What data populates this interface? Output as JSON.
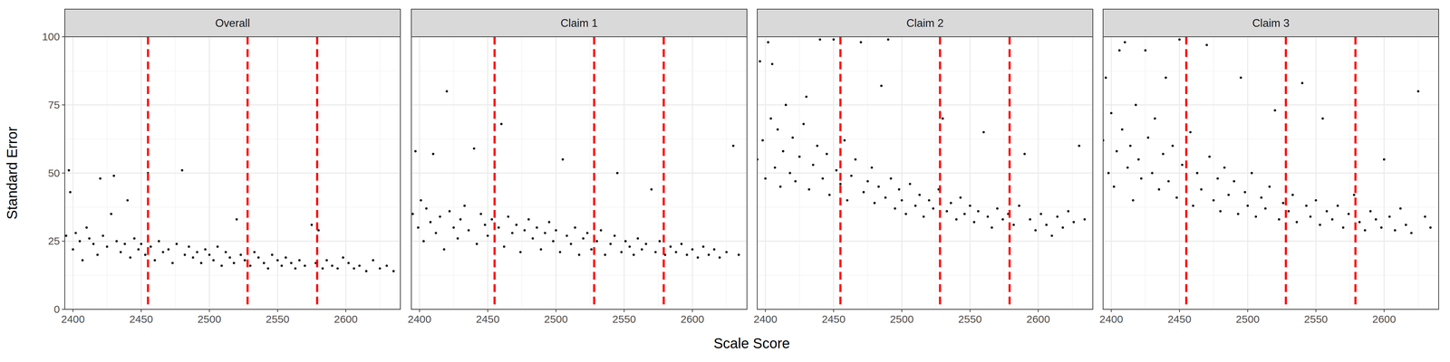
{
  "chart_data": {
    "type": "scatter",
    "xlabel": "Scale Score",
    "ylabel": "Standard Error",
    "xlim": [
      2394,
      2640
    ],
    "ylim": [
      0,
      100
    ],
    "xticks": [
      2400,
      2450,
      2500,
      2550,
      2600
    ],
    "yticks": [
      0,
      25,
      50,
      75,
      100
    ],
    "grid": true,
    "color": "#000000",
    "reference_lines": [
      2455,
      2528,
      2579
    ],
    "series": [
      {
        "name": "Overall",
        "x": [
          2395,
          2397,
          2398,
          2400,
          2402,
          2405,
          2407,
          2410,
          2412,
          2415,
          2418,
          2420,
          2422,
          2425,
          2428,
          2430,
          2432,
          2435,
          2438,
          2440,
          2442,
          2445,
          2448,
          2450,
          2453,
          2455,
          2457,
          2460,
          2463,
          2466,
          2470,
          2473,
          2476,
          2480,
          2482,
          2485,
          2488,
          2491,
          2494,
          2497,
          2500,
          2503,
          2506,
          2509,
          2512,
          2515,
          2518,
          2520,
          2523,
          2526,
          2530,
          2533,
          2536,
          2540,
          2543,
          2546,
          2550,
          2553,
          2556,
          2560,
          2563,
          2566,
          2570,
          2575,
          2578,
          2580,
          2583,
          2586,
          2590,
          2594,
          2598,
          2602,
          2606,
          2610,
          2615,
          2620,
          2625,
          2630,
          2635
        ],
        "values": [
          27,
          51,
          43,
          22,
          28,
          25,
          18,
          30,
          26,
          24,
          20,
          48,
          27,
          23,
          35,
          49,
          25,
          21,
          24,
          40,
          19,
          26,
          22,
          24,
          20,
          50,
          23,
          18,
          25,
          21,
          22,
          17,
          24,
          51,
          20,
          23,
          19,
          21,
          17,
          22,
          20,
          18,
          23,
          16,
          21,
          19,
          17,
          33,
          20,
          18,
          16,
          21,
          19,
          17,
          15,
          20,
          18,
          16,
          19,
          17,
          15,
          18,
          16,
          31,
          17,
          29,
          15,
          18,
          16,
          15,
          19,
          17,
          15,
          16,
          14,
          18,
          15,
          16,
          14
        ]
      },
      {
        "name": "Claim 1",
        "x": [
          2395,
          2397,
          2399,
          2401,
          2403,
          2405,
          2408,
          2410,
          2412,
          2415,
          2418,
          2420,
          2422,
          2425,
          2428,
          2430,
          2433,
          2436,
          2440,
          2442,
          2445,
          2448,
          2450,
          2453,
          2455,
          2458,
          2460,
          2462,
          2465,
          2468,
          2471,
          2474,
          2477,
          2480,
          2483,
          2486,
          2489,
          2492,
          2495,
          2498,
          2500,
          2503,
          2505,
          2508,
          2511,
          2514,
          2517,
          2520,
          2523,
          2526,
          2530,
          2533,
          2536,
          2540,
          2543,
          2545,
          2548,
          2551,
          2554,
          2557,
          2560,
          2563,
          2566,
          2570,
          2573,
          2576,
          2580,
          2584,
          2588,
          2592,
          2596,
          2600,
          2604,
          2608,
          2612,
          2616,
          2620,
          2625,
          2630,
          2634
        ],
        "values": [
          35,
          58,
          30,
          40,
          25,
          37,
          32,
          57,
          28,
          34,
          22,
          80,
          36,
          30,
          26,
          33,
          38,
          29,
          59,
          24,
          35,
          31,
          27,
          33,
          52,
          30,
          68,
          23,
          34,
          28,
          31,
          21,
          29,
          33,
          26,
          30,
          22,
          28,
          32,
          25,
          29,
          21,
          55,
          27,
          24,
          30,
          20,
          26,
          28,
          22,
          25,
          29,
          20,
          24,
          27,
          50,
          21,
          25,
          23,
          20,
          26,
          22,
          24,
          44,
          21,
          25,
          20,
          23,
          21,
          24,
          20,
          22,
          19,
          23,
          20,
          22,
          19,
          21,
          60,
          20
        ]
      },
      {
        "name": "Claim 2",
        "x": [
          2394,
          2396,
          2398,
          2400,
          2402,
          2404,
          2405,
          2407,
          2409,
          2411,
          2413,
          2415,
          2418,
          2420,
          2422,
          2425,
          2428,
          2430,
          2432,
          2435,
          2438,
          2440,
          2442,
          2445,
          2447,
          2450,
          2452,
          2455,
          2458,
          2460,
          2463,
          2466,
          2470,
          2472,
          2475,
          2478,
          2480,
          2483,
          2485,
          2488,
          2490,
          2492,
          2495,
          2498,
          2500,
          2503,
          2506,
          2510,
          2513,
          2516,
          2520,
          2523,
          2527,
          2530,
          2533,
          2536,
          2540,
          2543,
          2546,
          2550,
          2553,
          2556,
          2560,
          2563,
          2566,
          2570,
          2574,
          2578,
          2582,
          2586,
          2590,
          2594,
          2598,
          2602,
          2606,
          2610,
          2614,
          2618,
          2622,
          2626,
          2630,
          2634
        ],
        "values": [
          55,
          91,
          62,
          48,
          98,
          70,
          90,
          52,
          66,
          45,
          58,
          75,
          50,
          63,
          47,
          56,
          68,
          78,
          44,
          53,
          60,
          99,
          48,
          57,
          42,
          99,
          51,
          46,
          62,
          40,
          49,
          55,
          98,
          43,
          47,
          52,
          39,
          45,
          82,
          41,
          99,
          48,
          37,
          44,
          40,
          35,
          46,
          38,
          42,
          34,
          40,
          37,
          44,
          70,
          36,
          39,
          33,
          41,
          35,
          38,
          32,
          36,
          65,
          34,
          30,
          37,
          33,
          35,
          31,
          38,
          57,
          33,
          29,
          35,
          31,
          27,
          34,
          30,
          36,
          32,
          60,
          33
        ]
      },
      {
        "name": "Claim 3",
        "x": [
          2394,
          2396,
          2398,
          2400,
          2402,
          2404,
          2406,
          2408,
          2410,
          2412,
          2414,
          2416,
          2418,
          2420,
          2422,
          2425,
          2427,
          2430,
          2432,
          2435,
          2438,
          2440,
          2442,
          2445,
          2448,
          2450,
          2452,
          2455,
          2458,
          2460,
          2463,
          2466,
          2470,
          2472,
          2475,
          2478,
          2480,
          2483,
          2486,
          2490,
          2493,
          2495,
          2498,
          2500,
          2503,
          2506,
          2510,
          2513,
          2516,
          2520,
          2523,
          2526,
          2530,
          2533,
          2536,
          2540,
          2543,
          2546,
          2550,
          2553,
          2555,
          2558,
          2562,
          2566,
          2570,
          2574,
          2578,
          2582,
          2586,
          2590,
          2594,
          2598,
          2600,
          2604,
          2608,
          2612,
          2616,
          2620,
          2625,
          2630,
          2634
        ],
        "values": [
          62,
          85,
          50,
          72,
          45,
          58,
          95,
          66,
          98,
          52,
          60,
          40,
          75,
          55,
          48,
          95,
          63,
          50,
          70,
          44,
          57,
          85,
          47,
          60,
          41,
          99,
          53,
          45,
          65,
          38,
          50,
          44,
          97,
          56,
          40,
          48,
          36,
          52,
          42,
          47,
          35,
          85,
          43,
          38,
          50,
          34,
          41,
          37,
          45,
          73,
          33,
          39,
          36,
          42,
          32,
          83,
          38,
          34,
          40,
          31,
          70,
          36,
          33,
          38,
          30,
          35,
          42,
          32,
          29,
          36,
          33,
          30,
          55,
          34,
          29,
          37,
          31,
          28,
          80,
          34,
          30
        ]
      }
    ]
  }
}
